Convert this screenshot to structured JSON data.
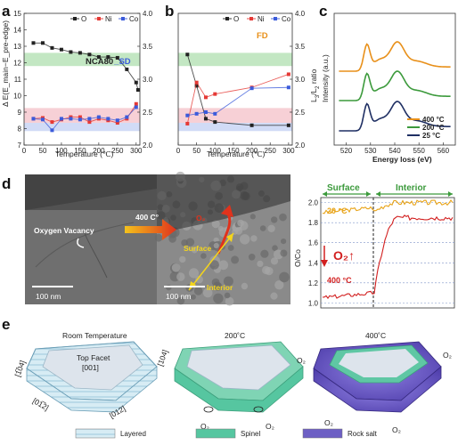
{
  "figure": {
    "panel_labels": [
      "a",
      "b",
      "c",
      "d",
      "e"
    ]
  },
  "chart_data": [
    {
      "panel": "a",
      "type": "line",
      "tag": "NCA80_SD",
      "xlabel": "Temperature (℃)",
      "ylabel": "Δ E(E_main−E_pre-edge)",
      "ylabel_right": "L3/L2 ratio",
      "xlim": [
        0,
        310
      ],
      "ylim": [
        7,
        15
      ],
      "ylim_right": [
        2.0,
        4.0
      ],
      "xticks": [
        0,
        50,
        100,
        150,
        200,
        250,
        300
      ],
      "yticks": [
        7,
        8,
        9,
        10,
        11,
        12,
        13,
        14,
        15
      ],
      "yticks_right": [
        "2.0",
        "2.5",
        "3.0",
        "3.5",
        "4.0"
      ],
      "bands": [
        {
          "from": 11.8,
          "to": 12.6,
          "color": "#b9e3b9"
        },
        {
          "from": 8.35,
          "to": 9.25,
          "color": "#f6c8cf"
        },
        {
          "from": 7.85,
          "to": 8.35,
          "color": "#c9d5f5"
        }
      ],
      "series": [
        {
          "name": "O",
          "color": "#222222",
          "x": [
            25,
            50,
            75,
            100,
            125,
            150,
            175,
            200,
            225,
            250,
            275,
            300,
            305
          ],
          "y": [
            13.2,
            13.2,
            12.9,
            12.8,
            12.65,
            12.6,
            12.5,
            12.35,
            12.35,
            12.3,
            11.6,
            10.8,
            10.35
          ]
        },
        {
          "name": "Ni",
          "color": "#e53935",
          "x": [
            25,
            50,
            75,
            100,
            125,
            150,
            175,
            200,
            225,
            250,
            275,
            300
          ],
          "y": [
            8.6,
            8.65,
            8.4,
            8.55,
            8.7,
            8.7,
            8.4,
            8.6,
            8.5,
            8.35,
            8.6,
            9.5
          ]
        },
        {
          "name": "Co",
          "color": "#3b5bdb",
          "x": [
            25,
            50,
            75,
            100,
            125,
            150,
            175,
            200,
            225,
            250,
            275,
            300
          ],
          "y": [
            8.6,
            8.55,
            7.9,
            8.6,
            8.6,
            8.55,
            8.6,
            8.7,
            8.6,
            8.5,
            8.7,
            9.3
          ]
        }
      ]
    },
    {
      "panel": "b",
      "type": "line",
      "tag": "FD",
      "xlabel": "Temperature (℃)",
      "ylabel_right": "L3/L2 ratio",
      "xlim": [
        0,
        310
      ],
      "ylim": [
        7,
        15
      ],
      "ylim_right": [
        2.0,
        4.0
      ],
      "xticks": [
        0,
        50,
        100,
        150,
        200,
        250,
        300
      ],
      "yticks_right": [
        "2.0",
        "2.5",
        "3.0",
        "3.5",
        "4.0"
      ],
      "bands": [
        {
          "from": 11.8,
          "to": 12.6,
          "color": "#b9e3b9"
        },
        {
          "from": 8.35,
          "to": 9.25,
          "color": "#f6c8cf"
        },
        {
          "from": 7.85,
          "to": 8.35,
          "color": "#c9d5f5"
        }
      ],
      "series": [
        {
          "name": "O",
          "color": "#222222",
          "x": [
            25,
            50,
            75,
            100,
            200,
            300
          ],
          "y": [
            12.5,
            10.6,
            8.6,
            8.4,
            8.2,
            8.2
          ]
        },
        {
          "name": "Ni",
          "color": "#e53935",
          "x": [
            25,
            50,
            75,
            100,
            200,
            300
          ],
          "y": [
            8.3,
            10.8,
            9.9,
            10.1,
            10.5,
            11.3
          ]
        },
        {
          "name": "Co",
          "color": "#3b5bdb",
          "x": [
            25,
            50,
            75,
            100,
            200,
            300
          ],
          "y": [
            8.8,
            8.9,
            9.0,
            8.9,
            10.45,
            10.5
          ]
        }
      ]
    },
    {
      "panel": "c",
      "type": "line",
      "xlabel": "Energy loss (eV)",
      "ylabel": "Intensity (a.u.)",
      "xlim": [
        515,
        565
      ],
      "xticks": [
        520,
        530,
        540,
        550,
        560
      ],
      "series": [
        {
          "name": "400 °C",
          "color": "#e8901a",
          "offset": 2.0
        },
        {
          "name": "200 °C",
          "color": "#3c9a3c",
          "offset": 1.0
        },
        {
          "name": "25 °C",
          "color": "#1f2f63",
          "offset": 0.0
        }
      ]
    },
    {
      "panel": "d-right",
      "type": "line",
      "ylabel": "O/Co",
      "ylim": [
        0.95,
        2.05
      ],
      "yticks": [
        "1.0",
        "1.2",
        "1.4",
        "1.6",
        "1.8",
        "2.0"
      ],
      "regions": [
        "Surface",
        "Interior"
      ],
      "series": [
        {
          "name": "20 °C",
          "color": "#e8a317",
          "y_surface": 1.9,
          "y_interior": 2.0
        },
        {
          "name": "400 °C",
          "color": "#d21f1f",
          "y_surface": 1.05,
          "y_interior": 1.85
        }
      ]
    }
  ],
  "panel_c": {
    "legend": [
      "400 °C",
      "200 °C",
      "25 °C"
    ]
  },
  "panel_d": {
    "oxygen_vacancy": "Oxygen Vacancy",
    "temp_arrow": "400 C°",
    "o2_label": "O₂",
    "surface": "Surface",
    "interior": "Interior",
    "scalebar_left": "100 nm",
    "scalebar_right": "100 nm",
    "o2_arrow_label": "O₂↑",
    "region_surface": "Surface",
    "region_interior": "Interior",
    "curve_20": "20 °C",
    "curve_400": "400 °C"
  },
  "panel_e": {
    "titles": [
      "Room Temperature",
      "200˚C",
      "400˚C"
    ],
    "top_facet": "Top Facet",
    "top_facet_index": "[001]",
    "facet_104bar": "[1̅04]",
    "facet_104": "[104]",
    "facet_012bar": "[01̅2]",
    "facet_012": "[012]",
    "o2": "O₂",
    "legend": [
      {
        "label": "Layered",
        "color": "#cfe8f2"
      },
      {
        "label": "Spinel",
        "color": "#56c6a0"
      },
      {
        "label": "Rock salt",
        "color": "#6d5fc4"
      }
    ]
  }
}
